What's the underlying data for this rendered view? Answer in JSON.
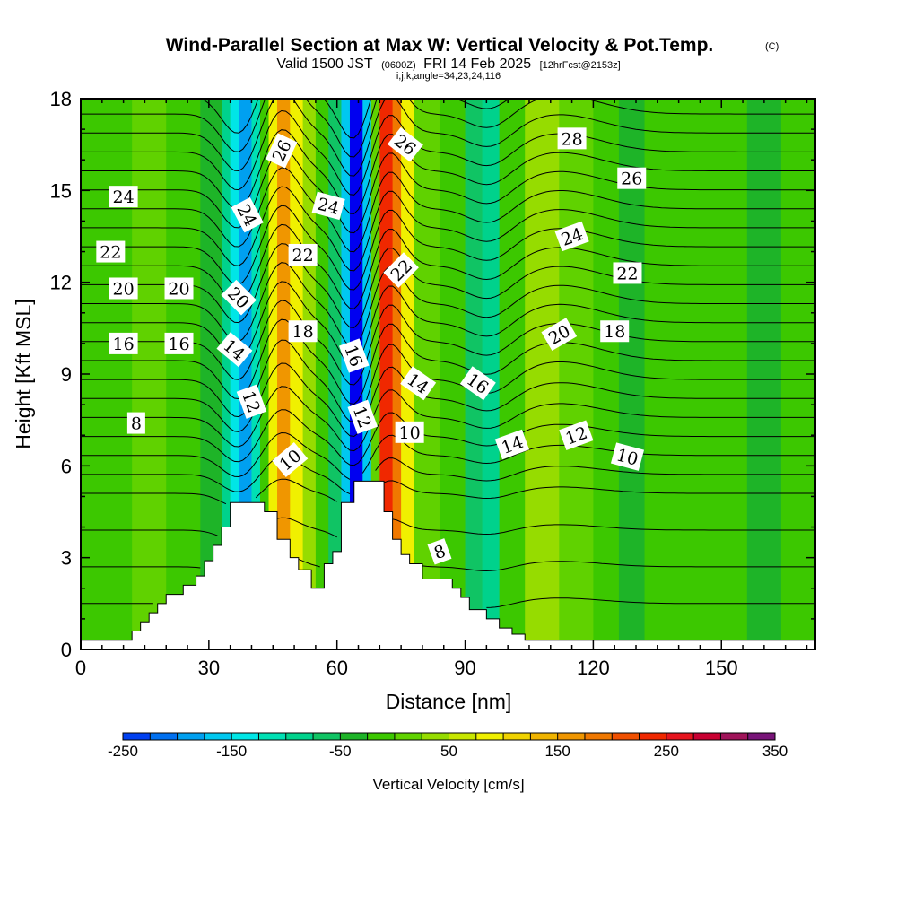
{
  "title": {
    "main": "Wind-Parallel Section at Max W: Vertical Velocity & Pot.Temp.",
    "copyright": "(C)",
    "valid_prefix": "Valid 1500 JST",
    "valid_utc": "(0600Z)",
    "valid_date": "FRI 14 Feb 2025",
    "forecast": "[12hrFcst@2153z]",
    "indices": "i,j,k,angle=34,23,24,116"
  },
  "chart_data": {
    "type": "heatmap",
    "xlabel": "Distance [nm]",
    "ylabel": "Height [Kft MSL]",
    "xlim": [
      0,
      172
    ],
    "ylim": [
      0,
      18
    ],
    "x_ticks": [
      0,
      30,
      60,
      90,
      120,
      150
    ],
    "y_ticks": [
      0,
      3,
      6,
      9,
      12,
      15,
      18
    ],
    "colorbar": {
      "label": "Vertical Velocity [cm/s]",
      "min": -250,
      "max": 350,
      "tick_values": [
        -250,
        -150,
        -50,
        50,
        150,
        250,
        350
      ],
      "tick_labels": [
        "-250",
        "-150",
        "-50",
        "50",
        "150",
        "250",
        "350"
      ],
      "colors": [
        "#0000f0",
        "#0040f0",
        "#0070f0",
        "#00a0f0",
        "#00c8f0",
        "#00e6e6",
        "#00e0b4",
        "#00d28c",
        "#10c464",
        "#1eb428",
        "#3cc800",
        "#60d200",
        "#96dc00",
        "#c8e600",
        "#f0f000",
        "#f0d200",
        "#f0b400",
        "#f09600",
        "#f07800",
        "#f05000",
        "#f02800",
        "#e6141e",
        "#c80032",
        "#a0145a",
        "#781478",
        "#500a8c"
      ],
      "band_values": [
        -250,
        -225,
        -200,
        -175,
        -150,
        -125,
        -100,
        -75,
        -50,
        -25,
        0,
        25,
        50,
        75,
        100,
        125,
        150,
        175,
        200,
        225,
        250,
        275,
        300,
        325,
        350
      ]
    },
    "vertical_velocity_bands": [
      {
        "x_start": 0,
        "x_end": 12,
        "w": 10
      },
      {
        "x_start": 12,
        "x_end": 20,
        "w": 25
      },
      {
        "x_start": 20,
        "x_end": 28,
        "w": 5
      },
      {
        "x_start": 28,
        "x_end": 33,
        "w": -10
      },
      {
        "x_start": 33,
        "x_end": 35,
        "w": -60
      },
      {
        "x_start": 35,
        "x_end": 37,
        "w": -110
      },
      {
        "x_start": 37,
        "x_end": 40,
        "w": -160
      },
      {
        "x_start": 40,
        "x_end": 42,
        "w": -90
      },
      {
        "x_start": 42,
        "x_end": 44,
        "w": 20
      },
      {
        "x_start": 44,
        "x_end": 46,
        "w": 110
      },
      {
        "x_start": 46,
        "x_end": 49,
        "w": 180
      },
      {
        "x_start": 49,
        "x_end": 52,
        "w": 120
      },
      {
        "x_start": 52,
        "x_end": 55,
        "w": 60
      },
      {
        "x_start": 55,
        "x_end": 58,
        "w": 20
      },
      {
        "x_start": 58,
        "x_end": 61,
        "w": -40
      },
      {
        "x_start": 61,
        "x_end": 63,
        "w": -130
      },
      {
        "x_start": 63,
        "x_end": 66,
        "w": -230
      },
      {
        "x_start": 66,
        "x_end": 68,
        "w": -140
      },
      {
        "x_start": 68,
        "x_end": 70,
        "w": 30
      },
      {
        "x_start": 70,
        "x_end": 73,
        "w": 260
      },
      {
        "x_start": 73,
        "x_end": 75,
        "w": 200
      },
      {
        "x_start": 75,
        "x_end": 78,
        "w": 110
      },
      {
        "x_start": 78,
        "x_end": 84,
        "w": 40
      },
      {
        "x_start": 84,
        "x_end": 90,
        "w": 10
      },
      {
        "x_start": 90,
        "x_end": 94,
        "w": -30
      },
      {
        "x_start": 94,
        "x_end": 98,
        "w": -55
      },
      {
        "x_start": 98,
        "x_end": 104,
        "w": 5
      },
      {
        "x_start": 104,
        "x_end": 112,
        "w": 50
      },
      {
        "x_start": 112,
        "x_end": 120,
        "w": 30
      },
      {
        "x_start": 120,
        "x_end": 126,
        "w": 10
      },
      {
        "x_start": 126,
        "x_end": 132,
        "w": -25
      },
      {
        "x_start": 132,
        "x_end": 142,
        "w": 20
      },
      {
        "x_start": 142,
        "x_end": 148,
        "w": 0
      },
      {
        "x_start": 148,
        "x_end": 156,
        "w": 15
      },
      {
        "x_start": 156,
        "x_end": 164,
        "w": -10
      },
      {
        "x_start": 164,
        "x_end": 172,
        "w": 10
      }
    ],
    "terrain_kft": [
      [
        0,
        0.3
      ],
      [
        12,
        0.6
      ],
      [
        14,
        0.9
      ],
      [
        16,
        1.2
      ],
      [
        18,
        1.5
      ],
      [
        20,
        1.8
      ],
      [
        24,
        2.1
      ],
      [
        27,
        2.4
      ],
      [
        29,
        2.9
      ],
      [
        31,
        3.4
      ],
      [
        33,
        4.0
      ],
      [
        35,
        4.8
      ],
      [
        42,
        4.8
      ],
      [
        43,
        4.5
      ],
      [
        45,
        4.5
      ],
      [
        46,
        3.6
      ],
      [
        49,
        3.0
      ],
      [
        51,
        2.6
      ],
      [
        54,
        2.0
      ],
      [
        57,
        2.8
      ],
      [
        59,
        3.2
      ],
      [
        61,
        4.8
      ],
      [
        64,
        5.5
      ],
      [
        69,
        5.5
      ],
      [
        71,
        4.5
      ],
      [
        73,
        3.6
      ],
      [
        75,
        3.1
      ],
      [
        77,
        2.8
      ],
      [
        80,
        2.3
      ],
      [
        85,
        2.3
      ],
      [
        87,
        2.0
      ],
      [
        89,
        1.7
      ],
      [
        91,
        1.3
      ],
      [
        95,
        1.0
      ],
      [
        98,
        0.7
      ],
      [
        101,
        0.5
      ],
      [
        104,
        0.3
      ],
      [
        172,
        0.3
      ]
    ],
    "theta_contour_labels": [
      {
        "text": "24",
        "x": 10,
        "y": 14.8,
        "angle": 0
      },
      {
        "text": "22",
        "x": 7,
        "y": 13.0,
        "angle": 0
      },
      {
        "text": "20",
        "x": 10,
        "y": 11.8,
        "angle": 0
      },
      {
        "text": "20",
        "x": 23,
        "y": 11.8,
        "angle": 0
      },
      {
        "text": "16",
        "x": 10,
        "y": 10.0,
        "angle": 0
      },
      {
        "text": "16",
        "x": 23,
        "y": 10.0,
        "angle": 0
      },
      {
        "text": "8",
        "x": 13,
        "y": 7.4,
        "angle": 0
      },
      {
        "text": "26",
        "x": 47,
        "y": 16.3,
        "angle": -65
      },
      {
        "text": "24",
        "x": 39,
        "y": 14.2,
        "angle": 62
      },
      {
        "text": "20",
        "x": 37,
        "y": 11.5,
        "angle": 45
      },
      {
        "text": "14",
        "x": 36,
        "y": 9.8,
        "angle": 40
      },
      {
        "text": "12",
        "x": 40,
        "y": 8.1,
        "angle": 70
      },
      {
        "text": "10",
        "x": 49,
        "y": 6.2,
        "angle": -40
      },
      {
        "text": "24",
        "x": 58,
        "y": 14.5,
        "angle": 15
      },
      {
        "text": "22",
        "x": 52,
        "y": 12.9,
        "angle": 0
      },
      {
        "text": "18",
        "x": 52,
        "y": 10.4,
        "angle": 0
      },
      {
        "text": "16",
        "x": 64,
        "y": 9.6,
        "angle": 70
      },
      {
        "text": "12",
        "x": 66,
        "y": 7.6,
        "angle": 70
      },
      {
        "text": "26",
        "x": 76,
        "y": 16.5,
        "angle": 38
      },
      {
        "text": "22",
        "x": 75,
        "y": 12.4,
        "angle": -45
      },
      {
        "text": "14",
        "x": 79,
        "y": 8.7,
        "angle": 35
      },
      {
        "text": "10",
        "x": 77,
        "y": 7.1,
        "angle": 0
      },
      {
        "text": "8",
        "x": 84,
        "y": 3.2,
        "angle": -20
      },
      {
        "text": "16",
        "x": 93,
        "y": 8.7,
        "angle": 35
      },
      {
        "text": "14",
        "x": 101,
        "y": 6.7,
        "angle": -20
      },
      {
        "text": "28",
        "x": 115,
        "y": 16.7,
        "angle": 0
      },
      {
        "text": "26",
        "x": 129,
        "y": 15.4,
        "angle": 0
      },
      {
        "text": "24",
        "x": 115,
        "y": 13.5,
        "angle": -20
      },
      {
        "text": "22",
        "x": 128,
        "y": 12.3,
        "angle": 0
      },
      {
        "text": "20",
        "x": 112,
        "y": 10.3,
        "angle": -30
      },
      {
        "text": "18",
        "x": 125,
        "y": 10.4,
        "angle": 0
      },
      {
        "text": "12",
        "x": 116,
        "y": 7.0,
        "angle": -20
      },
      {
        "text": "10",
        "x": 128,
        "y": 6.3,
        "angle": 15
      }
    ]
  }
}
